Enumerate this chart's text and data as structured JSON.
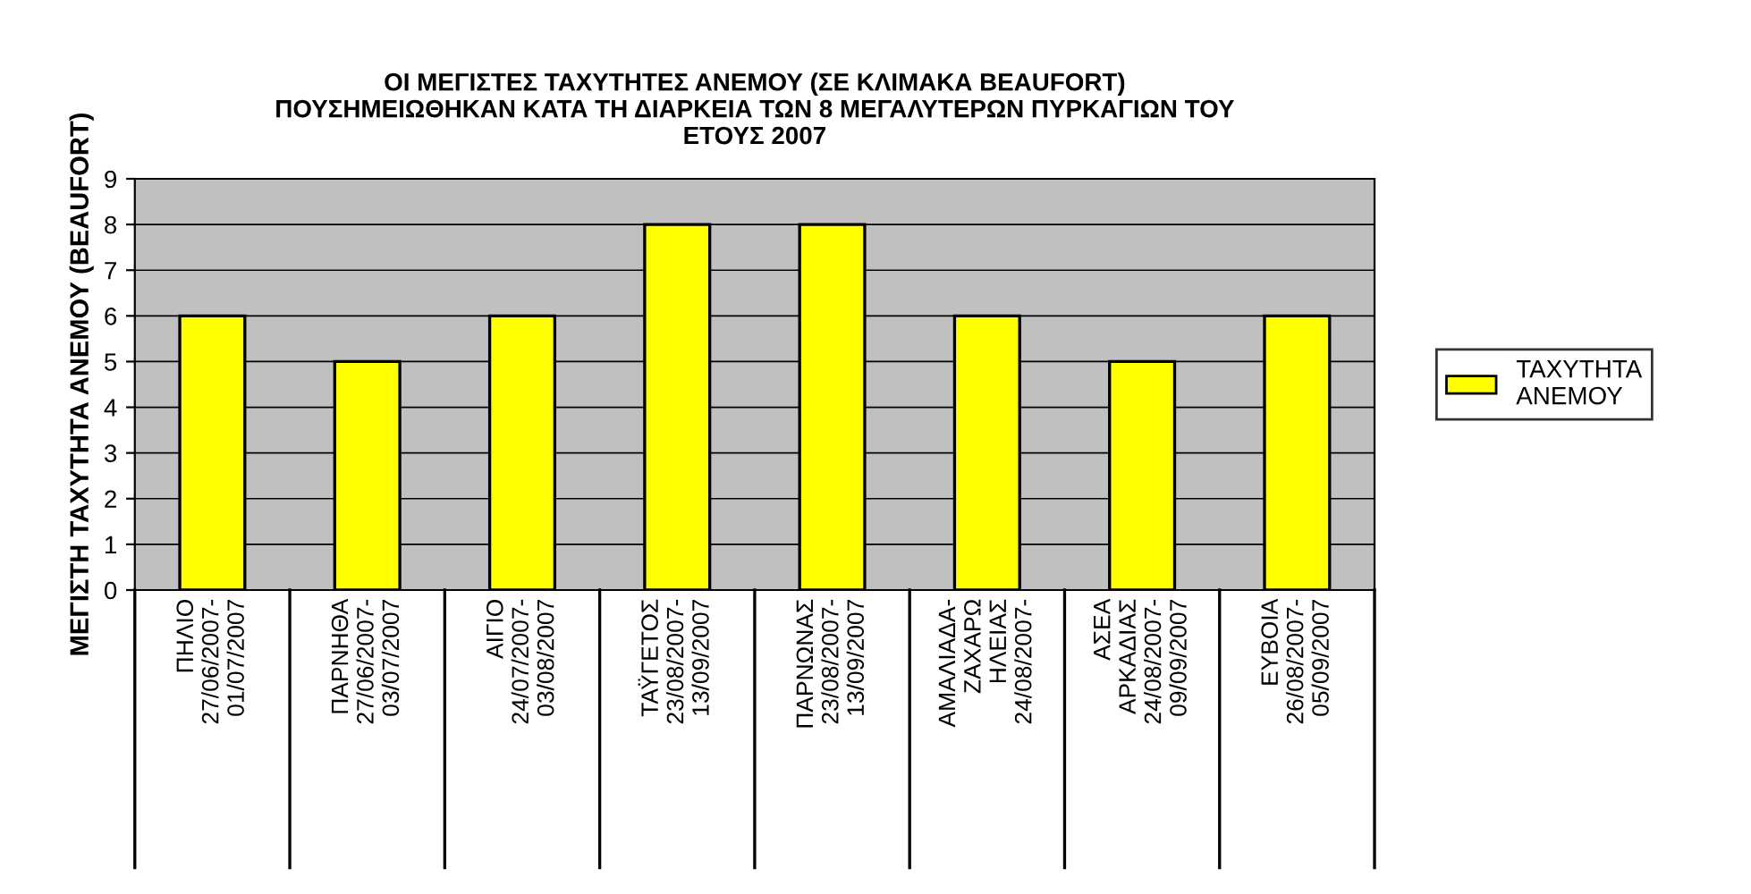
{
  "chart_data": {
    "type": "bar",
    "title": "ΟΙ ΜΕΓΙΣΤΕΣ ΤΑΧΥΤΗΤΕΣ ΑΝΕΜΟΥ (ΣΕ ΚΛΙΜΑΚΑ BEAUFORT)\nΠΟΥΣΗΜΕΙΩΘΗΚΑΝ ΚΑΤΑ ΤΗ ΔΙΑΡΚΕΙΑ ΤΩΝ 8 ΜΕΓΑΛΥΤΕΡΩΝ ΠΥΡΚΑΓΙΩΝ ΤΟΥ\nΕΤΟΥΣ 2007",
    "ylabel": "ΜΕΓΙΣΤΗ ΤΑΧΥΤΗΤΑ ΑΝΕΜΟΥ (BEAUFORT)",
    "categories": [
      "ΠΗΛΙΟ\n27/06/2007-\n01/07/2007",
      "ΠΑΡΝΗΘΑ\n27/06/2007-\n03/07/2007",
      "ΑΙΓΙΟ\n24/07/2007-\n03/08/2007",
      "ΤΑΫΓΕΤΟΣ\n23/08/2007-\n13/09/2007",
      "ΠΑΡΝΩΝΑΣ\n23/08/2007-\n13/09/2007",
      "ΑΜΑΛΙΑΔΑ-\nΖΑΧΑΡΩ\nΗΛΕΙΑΣ\n24/08/2007-",
      "ΑΣΕΑ\nΑΡΚΑΔΙΑΣ\n24/08/2007-\n09/09/2007",
      "ΕΥΒΟΙΑ\n26/08/2007-\n05/09/2007"
    ],
    "series": [
      {
        "name": "ΤΑΧΥΤΗΤΑ\nΑΝΕΜΟΥ",
        "color": "#ffff00",
        "values": [
          6,
          5,
          6,
          8,
          8,
          6,
          5,
          6
        ]
      }
    ],
    "ylim": [
      0,
      9
    ],
    "yticks": [
      0,
      1,
      2,
      3,
      4,
      5,
      6,
      7,
      8,
      9
    ],
    "grid": "y",
    "legend": "right"
  }
}
